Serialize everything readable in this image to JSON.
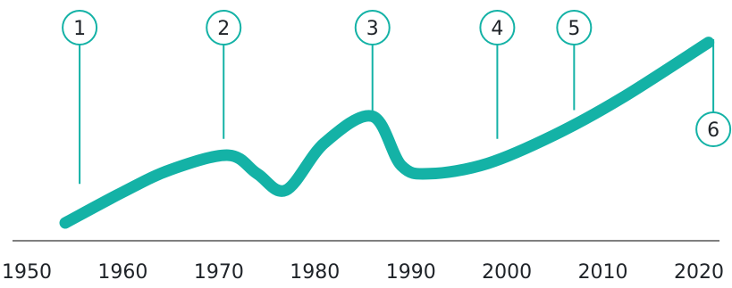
{
  "chart_data": {
    "type": "line",
    "title": "",
    "xlabel": "",
    "ylabel": "",
    "xlim": [
      1950,
      2020
    ],
    "ylim": [
      0,
      10
    ],
    "grid": false,
    "x_ticks": [
      "1950",
      "1960",
      "1970",
      "1980",
      "1990",
      "2000",
      "2010",
      "2020"
    ],
    "series": [
      {
        "color": "#14b2a6",
        "x": [
          1954,
          1960,
          1965,
          1971,
          1974,
          1977,
          1981,
          1986,
          1989,
          1992,
          1998,
          2005,
          2012,
          2021
        ],
        "y": [
          0.0,
          1.5,
          2.6,
          3.3,
          2.4,
          1.6,
          3.9,
          5.2,
          2.8,
          2.4,
          2.9,
          4.3,
          6.1,
          8.8
        ]
      }
    ],
    "annotations": [
      {
        "label": "1",
        "x": 1955.5,
        "y_line_bottom": 1.9
      },
      {
        "label": "2",
        "x": 1970.5,
        "y_line_bottom": 4.1
      },
      {
        "label": "3",
        "x": 1986,
        "y_line_bottom": 5.3
      },
      {
        "label": "4",
        "x": 1999,
        "y_line_bottom": 4.1
      },
      {
        "label": "5",
        "x": 2007,
        "y_line_bottom": 5.5
      },
      {
        "label": "6",
        "x": 2021.5,
        "y_line_bottom": 8.2,
        "label_below": true
      }
    ],
    "colors": {
      "line": "#14b2a6",
      "marker": "#14b2a6",
      "axis": "#555555",
      "text": "#1f2328"
    }
  }
}
